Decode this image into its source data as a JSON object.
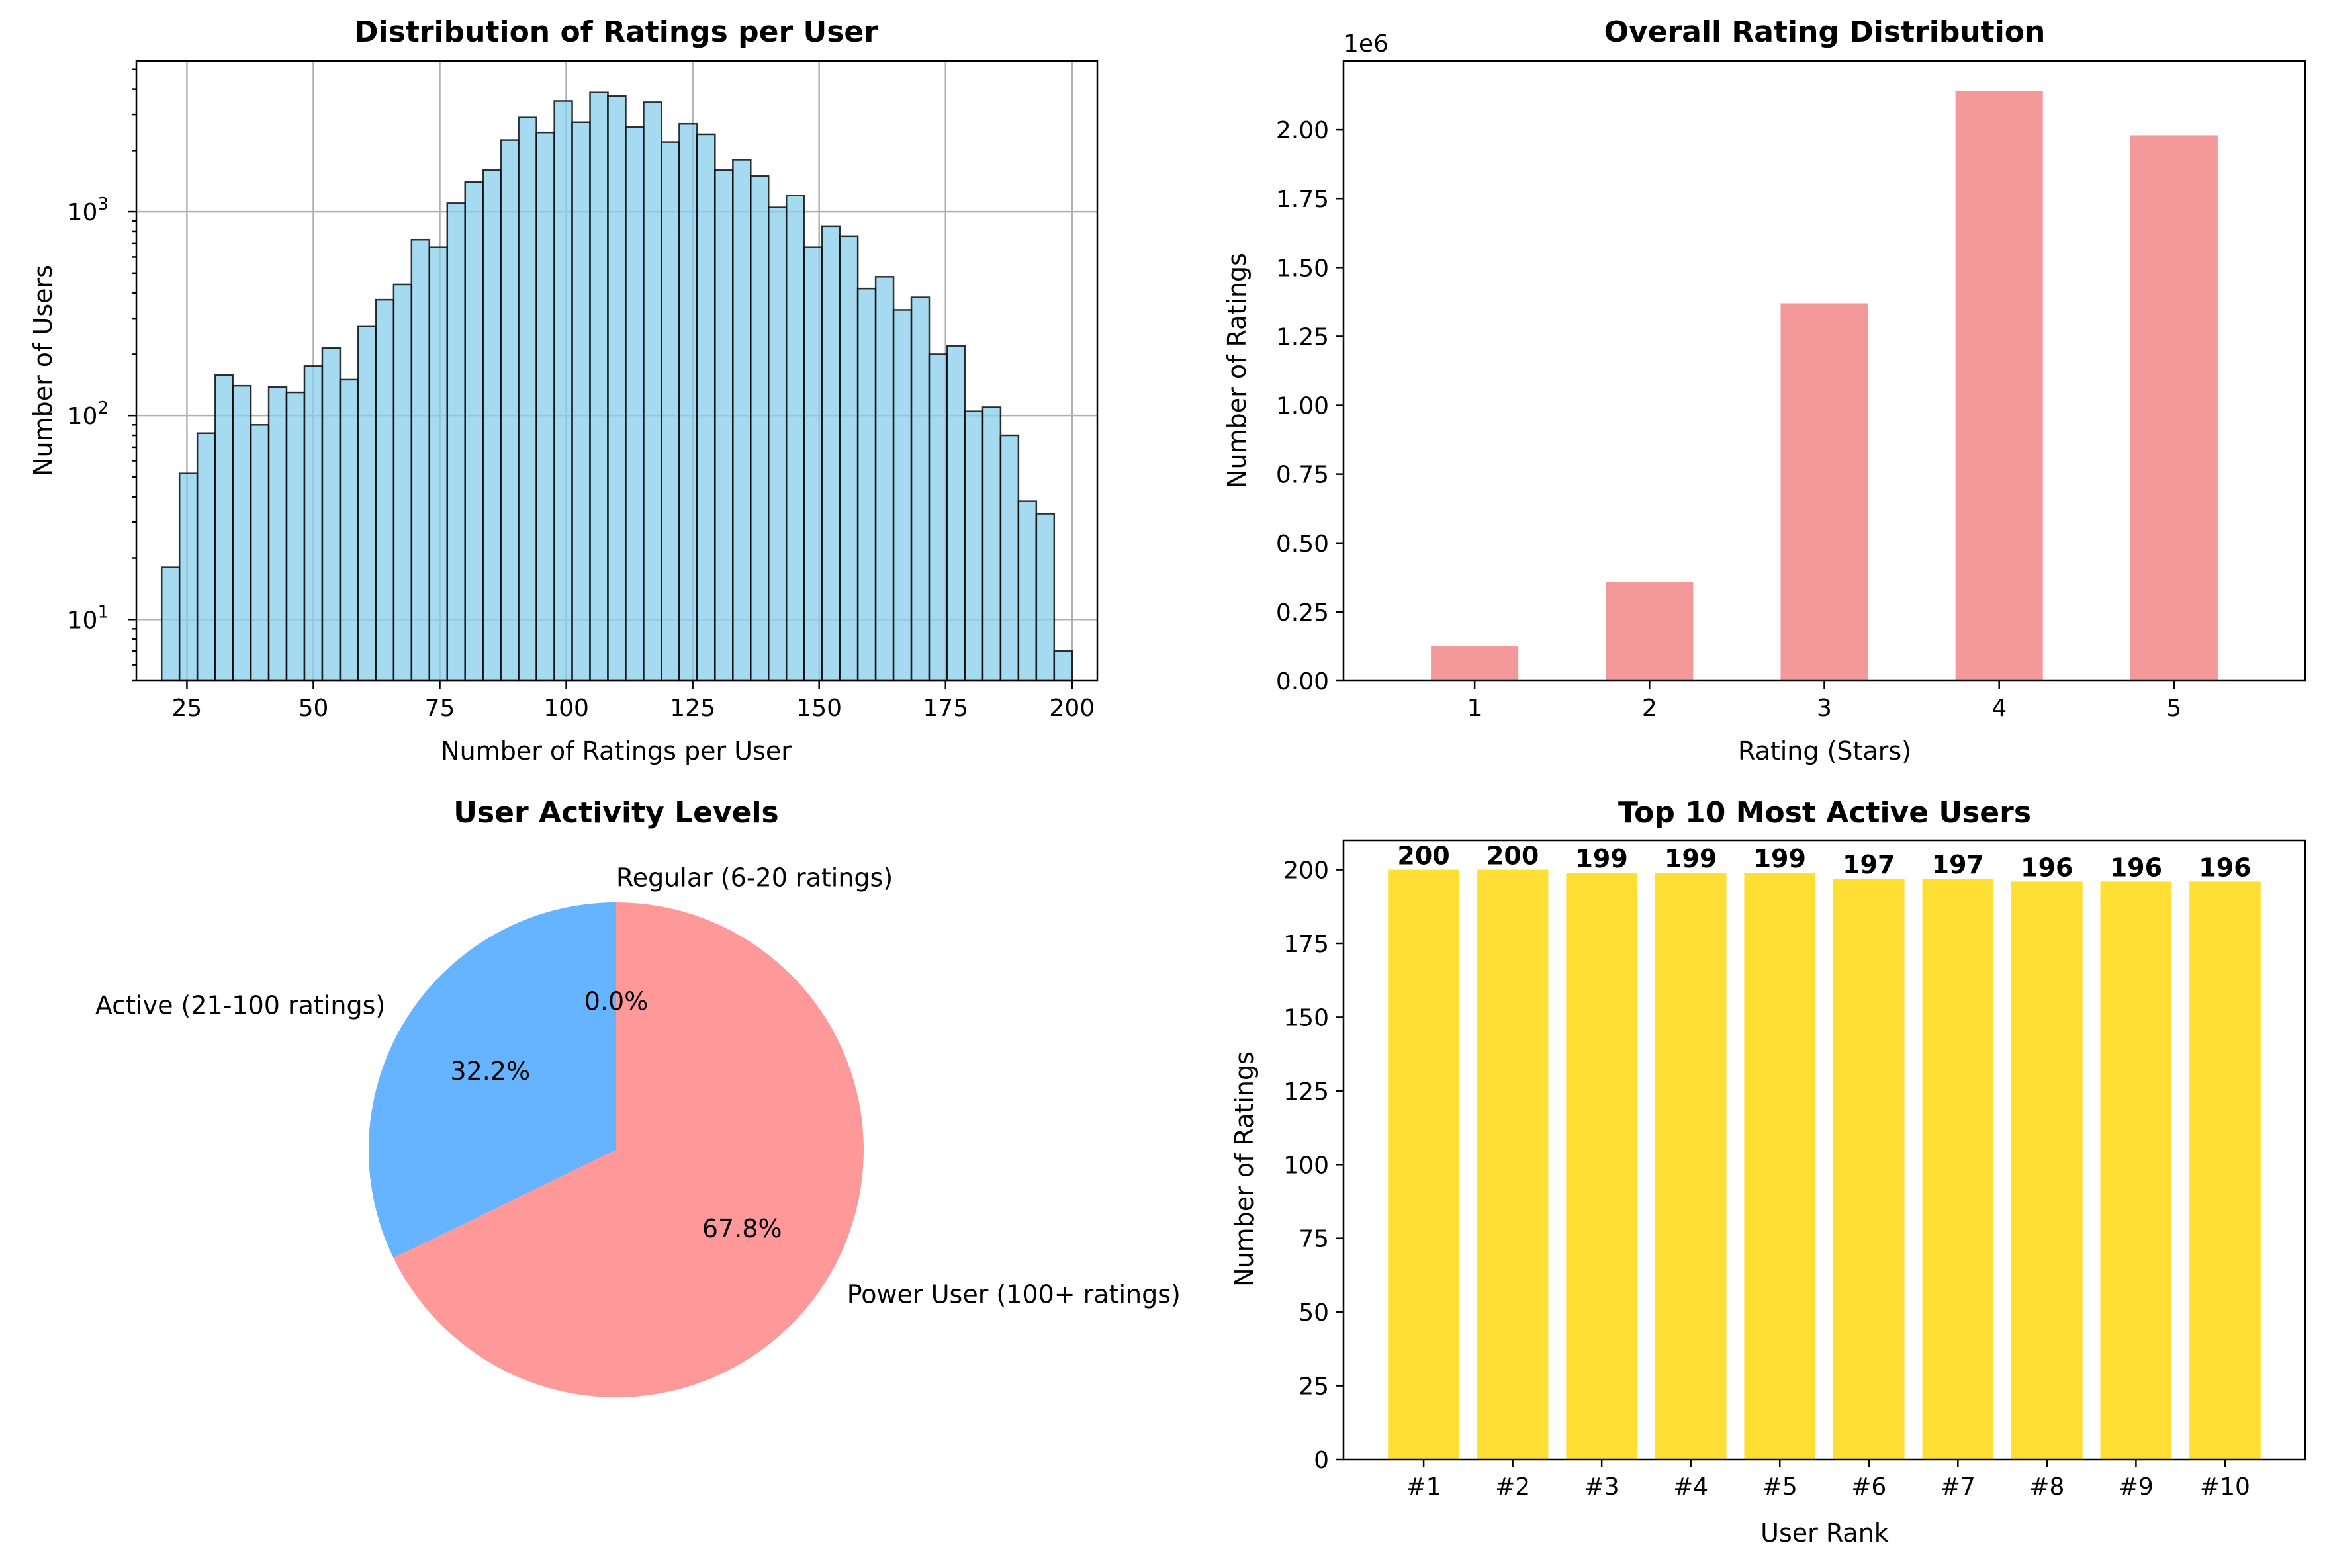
{
  "chart_data": [
    {
      "type": "bar",
      "subtype": "histogram",
      "title": "Distribution of Ratings per User",
      "xlabel": "Number of Ratings per User",
      "ylabel": "Number of Users",
      "yscale": "log",
      "grid": true,
      "xlim": [
        15,
        205
      ],
      "ylim": [
        5,
        5500
      ],
      "x_ticks": [
        "25",
        "50",
        "75",
        "100",
        "125",
        "150",
        "175",
        "200"
      ],
      "y_ticks": [
        10,
        100,
        1000
      ],
      "y_tick_exponents": [
        "1",
        "2",
        "3"
      ],
      "bins_start": 20,
      "bins_end": 200,
      "values": [
        18,
        52,
        82,
        158,
        140,
        90,
        138,
        130,
        175,
        215,
        150,
        275,
        370,
        440,
        730,
        670,
        1100,
        1400,
        1600,
        2250,
        2900,
        2450,
        3500,
        2750,
        3850,
        3700,
        2600,
        3450,
        2200,
        2700,
        2400,
        1600,
        1800,
        1500,
        1050,
        1200,
        670,
        850,
        760,
        420,
        480,
        330,
        380,
        200,
        220,
        105,
        110,
        80,
        38,
        33,
        7
      ],
      "color": "#87ceeb"
    },
    {
      "type": "bar",
      "title": "Overall Rating Distribution",
      "xlabel": "Rating (Stars)",
      "ylabel": "Number of Ratings",
      "offset_label": "1e6",
      "categories": [
        "1",
        "2",
        "3",
        "4",
        "5"
      ],
      "values": [
        0.125,
        0.36,
        1.37,
        2.14,
        1.98
      ],
      "ylim": [
        0,
        2.25
      ],
      "y_ticks": [
        "0.00",
        "0.25",
        "0.50",
        "0.75",
        "1.00",
        "1.25",
        "1.50",
        "1.75",
        "2.00"
      ],
      "color": "#f08080"
    },
    {
      "type": "pie",
      "title": "User Activity Levels",
      "slices": [
        {
          "label": "Regular (6-20 ratings)",
          "pct": "0.0%",
          "value": 0.0,
          "color": "#99ff99"
        },
        {
          "label": "Active (21-100 ratings)",
          "pct": "32.2%",
          "value": 32.2,
          "color": "#66b3ff"
        },
        {
          "label": "Power User (100+ ratings)",
          "pct": "67.8%",
          "value": 67.8,
          "color": "#ff9999"
        }
      ]
    },
    {
      "type": "bar",
      "title": "Top 10 Most Active Users",
      "xlabel": "User Rank",
      "ylabel": "Number of Ratings",
      "categories": [
        "#1",
        "#2",
        "#3",
        "#4",
        "#5",
        "#6",
        "#7",
        "#8",
        "#9",
        "#10"
      ],
      "values": [
        200,
        200,
        199,
        199,
        199,
        197,
        197,
        196,
        196,
        196
      ],
      "value_labels": [
        "200",
        "200",
        "199",
        "199",
        "199",
        "197",
        "197",
        "196",
        "196",
        "196"
      ],
      "ylim": [
        0,
        210
      ],
      "y_ticks": [
        "0",
        "25",
        "50",
        "75",
        "100",
        "125",
        "150",
        "175",
        "200"
      ],
      "color": "#ffd700"
    }
  ]
}
